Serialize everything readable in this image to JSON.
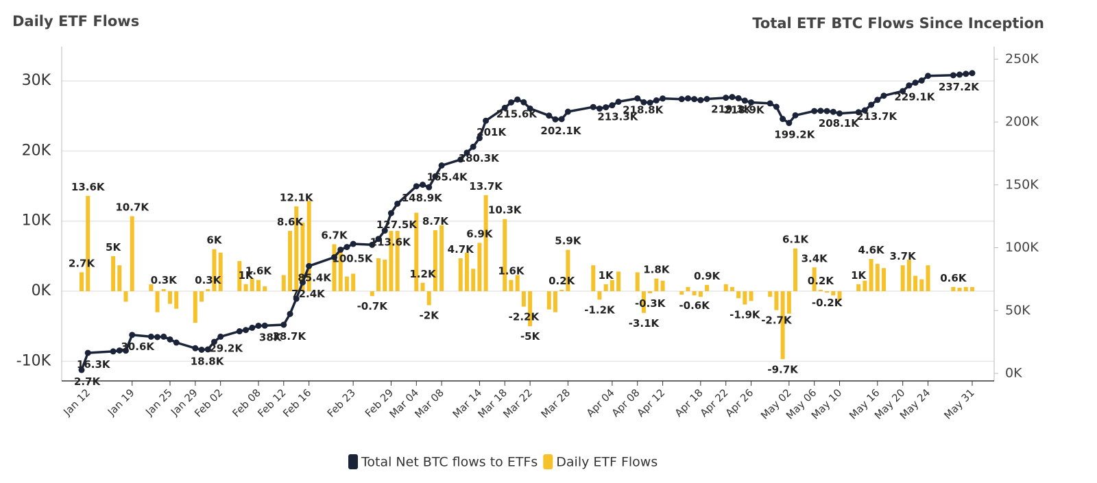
{
  "chart_data": {
    "type": "combo",
    "title": "Daily ETF Flows",
    "y2_title": "Total ETF BTC Flows Since Inception",
    "x": [
      "Jan 11",
      "Jan 12",
      "Jan 16",
      "Jan 17",
      "Jan 18",
      "Jan 19",
      "Jan 22",
      "Jan 23",
      "Jan 24",
      "Jan 25",
      "Jan 26",
      "Jan 29",
      "Jan 30",
      "Jan 31",
      "Feb 01",
      "Feb 02",
      "Feb 05",
      "Feb 06",
      "Feb 07",
      "Feb 08",
      "Feb 09",
      "Feb 12",
      "Feb 13",
      "Feb 14",
      "Feb 15",
      "Feb 16",
      "Feb 20",
      "Feb 21",
      "Feb 22",
      "Feb 23",
      "Feb 26",
      "Feb 27",
      "Feb 28",
      "Feb 29",
      "Mar 01",
      "Mar 04",
      "Mar 05",
      "Mar 06",
      "Mar 07",
      "Mar 08",
      "Mar 11",
      "Mar 12",
      "Mar 13",
      "Mar 14",
      "Mar 15",
      "Mar 18",
      "Mar 19",
      "Mar 20",
      "Mar 21",
      "Mar 22",
      "Mar 25",
      "Mar 26",
      "Mar 27",
      "Mar 28",
      "Apr 01",
      "Apr 02",
      "Apr 03",
      "Apr 04",
      "Apr 05",
      "Apr 08",
      "Apr 09",
      "Apr 10",
      "Apr 11",
      "Apr 12",
      "Apr 15",
      "Apr 16",
      "Apr 17",
      "Apr 18",
      "Apr 19",
      "Apr 22",
      "Apr 23",
      "Apr 24",
      "Apr 25",
      "Apr 26",
      "Apr 29",
      "Apr 30",
      "May 01",
      "May 02",
      "May 03",
      "May 06",
      "May 07",
      "May 08",
      "May 09",
      "May 10",
      "May 13",
      "May 14",
      "May 15",
      "May 16",
      "May 17",
      "May 20",
      "May 21",
      "May 22",
      "May 23",
      "May 24",
      "May 28",
      "May 29",
      "May 30",
      "May 31"
    ],
    "xticks": [
      "Jan 12",
      "Jan 19",
      "Jan 25",
      "Jan 29",
      "Feb 02",
      "Feb 08",
      "Feb 12",
      "Feb 16",
      "Feb 23",
      "Feb 29",
      "Mar 04",
      "Mar 08",
      "Mar 14",
      "Mar 18",
      "Mar 22",
      "Mar 28",
      "Apr 04",
      "Apr 08",
      "Apr 12",
      "Apr 18",
      "Apr 22",
      "Apr 26",
      "May 02",
      "May 06",
      "May 10",
      "May 16",
      "May 20",
      "May 24",
      "May 31"
    ],
    "ylim": [
      -12800,
      34900
    ],
    "yticks": [
      {
        "value": -10000,
        "label": "-10K"
      },
      {
        "value": 0,
        "label": "0K"
      },
      {
        "value": 10000,
        "label": "10K"
      },
      {
        "value": 20000,
        "label": "20K"
      },
      {
        "value": 30000,
        "label": "30K"
      }
    ],
    "y2lim": [
      -6000,
      260000
    ],
    "y2ticks": [
      {
        "value": 0,
        "label": "0K"
      },
      {
        "value": 50000,
        "label": "50K"
      },
      {
        "value": 100000,
        "label": "100K"
      },
      {
        "value": 150000,
        "label": "150K"
      },
      {
        "value": 200000,
        "label": "200K"
      },
      {
        "value": 250000,
        "label": "250K"
      }
    ],
    "grid": true,
    "legend": "bottom",
    "series": [
      {
        "name": "Total Net BTC flows to ETFs",
        "type": "line",
        "axis": "y2",
        "color": "#1b2339",
        "values": [
          2700,
          16300,
          17500,
          18200,
          18100,
          30600,
          29200,
          28900,
          29200,
          27000,
          24500,
          20000,
          18800,
          19100,
          25100,
          29200,
          33500,
          34500,
          36300,
          37900,
          38000,
          38700,
          47300,
          59400,
          72400,
          85400,
          92400,
          98400,
          100500,
          103000,
          102300,
          107000,
          113600,
          127500,
          135000,
          148900,
          150100,
          148100,
          156800,
          165400,
          170100,
          175600,
          180300,
          187200,
          201000,
          211300,
          215600,
          217900,
          215700,
          210700,
          205100,
          202100,
          202300,
          208200,
          211900,
          210700,
          211700,
          213300,
          216100,
          218800,
          215700,
          215400,
          217200,
          218700,
          218200,
          218800,
          218200,
          217400,
          218300,
          219300,
          219900,
          218900,
          217000,
          215600,
          214800,
          212100,
          202400,
          199200,
          205300,
          208700,
          208900,
          208700,
          208100,
          206800,
          207800,
          209300,
          213700,
          217600,
          220900,
          224600,
          229100,
          231300,
          233000,
          236700,
          237200,
          237700,
          238300,
          238900
        ],
        "value_labels": [
          "2.7K",
          "16.3K",
          null,
          null,
          null,
          "30.6K",
          null,
          null,
          null,
          null,
          null,
          null,
          "18.8K",
          null,
          null,
          "29.2K",
          null,
          null,
          null,
          null,
          "38K",
          "38.7K",
          null,
          null,
          "72.4K",
          "85.4K",
          null,
          null,
          "100.5K",
          null,
          null,
          null,
          "113.6K",
          "127.5K",
          null,
          "148.9K",
          null,
          null,
          null,
          "165.4K",
          null,
          null,
          "180.3K",
          null,
          "201K",
          null,
          "215.6K",
          null,
          null,
          null,
          null,
          "202.1K",
          null,
          null,
          null,
          null,
          null,
          "213.3K",
          null,
          "218.8K",
          null,
          null,
          null,
          null,
          null,
          null,
          null,
          null,
          null,
          "219.3K",
          null,
          "218.9K",
          null,
          null,
          null,
          null,
          null,
          "199.2K",
          null,
          null,
          null,
          null,
          "208.1K",
          null,
          null,
          null,
          "213.7K",
          null,
          null,
          null,
          "229.1K",
          null,
          null,
          null,
          "237.2K",
          null,
          null,
          null
        ]
      },
      {
        "name": "Daily ETF Flows",
        "type": "bar",
        "axis": "y",
        "color": "#f6c22b",
        "values": [
          2700,
          13600,
          5000,
          3700,
          -1500,
          10700,
          1000,
          -3000,
          300,
          -1800,
          -2500,
          -4500,
          -1500,
          300,
          6000,
          5500,
          4300,
          1000,
          1800,
          1600,
          700,
          2300,
          8600,
          12100,
          9800,
          12900,
          6700,
          6000,
          2100,
          2500,
          -700,
          4700,
          4500,
          8600,
          8600,
          11200,
          1200,
          -2000,
          8700,
          9400,
          4700,
          5500,
          3200,
          6900,
          13700,
          10300,
          1600,
          2300,
          -2200,
          -5000,
          -2600,
          -3000,
          200,
          5900,
          3700,
          -1200,
          1000,
          1600,
          2800,
          2700,
          -3100,
          -300,
          1800,
          1500,
          -500,
          600,
          -600,
          -800,
          900,
          1000,
          600,
          -1000,
          -1900,
          -1400,
          -800,
          -2700,
          -9700,
          -3200,
          6100,
          3400,
          200,
          -200,
          -600,
          -1300,
          1000,
          1500,
          4600,
          3900,
          3300,
          3700,
          4500,
          2200,
          1700,
          3700,
          600,
          500,
          600,
          600
        ],
        "value_labels": [
          "2.7K",
          "13.6K",
          "5K",
          null,
          null,
          "10.7K",
          null,
          null,
          "0.3K",
          null,
          null,
          null,
          null,
          "0.3K",
          "6K",
          null,
          null,
          "1K",
          null,
          "1.6K",
          null,
          null,
          "8.6K",
          "12.1K",
          null,
          null,
          "6.7K",
          null,
          null,
          null,
          "-0.7K",
          null,
          null,
          null,
          null,
          null,
          "1.2K",
          "-2K",
          "8.7K",
          null,
          "4.7K",
          null,
          null,
          "6.9K",
          "13.7K",
          "10.3K",
          "1.6K",
          null,
          "-2.2K",
          "-5K",
          null,
          null,
          "0.2K",
          "5.9K",
          null,
          "-1.2K",
          "1K",
          null,
          null,
          null,
          "-3.1K",
          "-0.3K",
          "1.8K",
          null,
          null,
          null,
          "-0.6K",
          null,
          "0.9K",
          null,
          null,
          null,
          "-1.9K",
          null,
          null,
          "-2.7K",
          "-9.7K",
          null,
          "6.1K",
          "3.4K",
          "0.2K",
          "-0.2K",
          null,
          null,
          "1K",
          null,
          "4.6K",
          null,
          null,
          "3.7K",
          null,
          null,
          null,
          null,
          "0.6K",
          null,
          null,
          null
        ]
      }
    ]
  }
}
